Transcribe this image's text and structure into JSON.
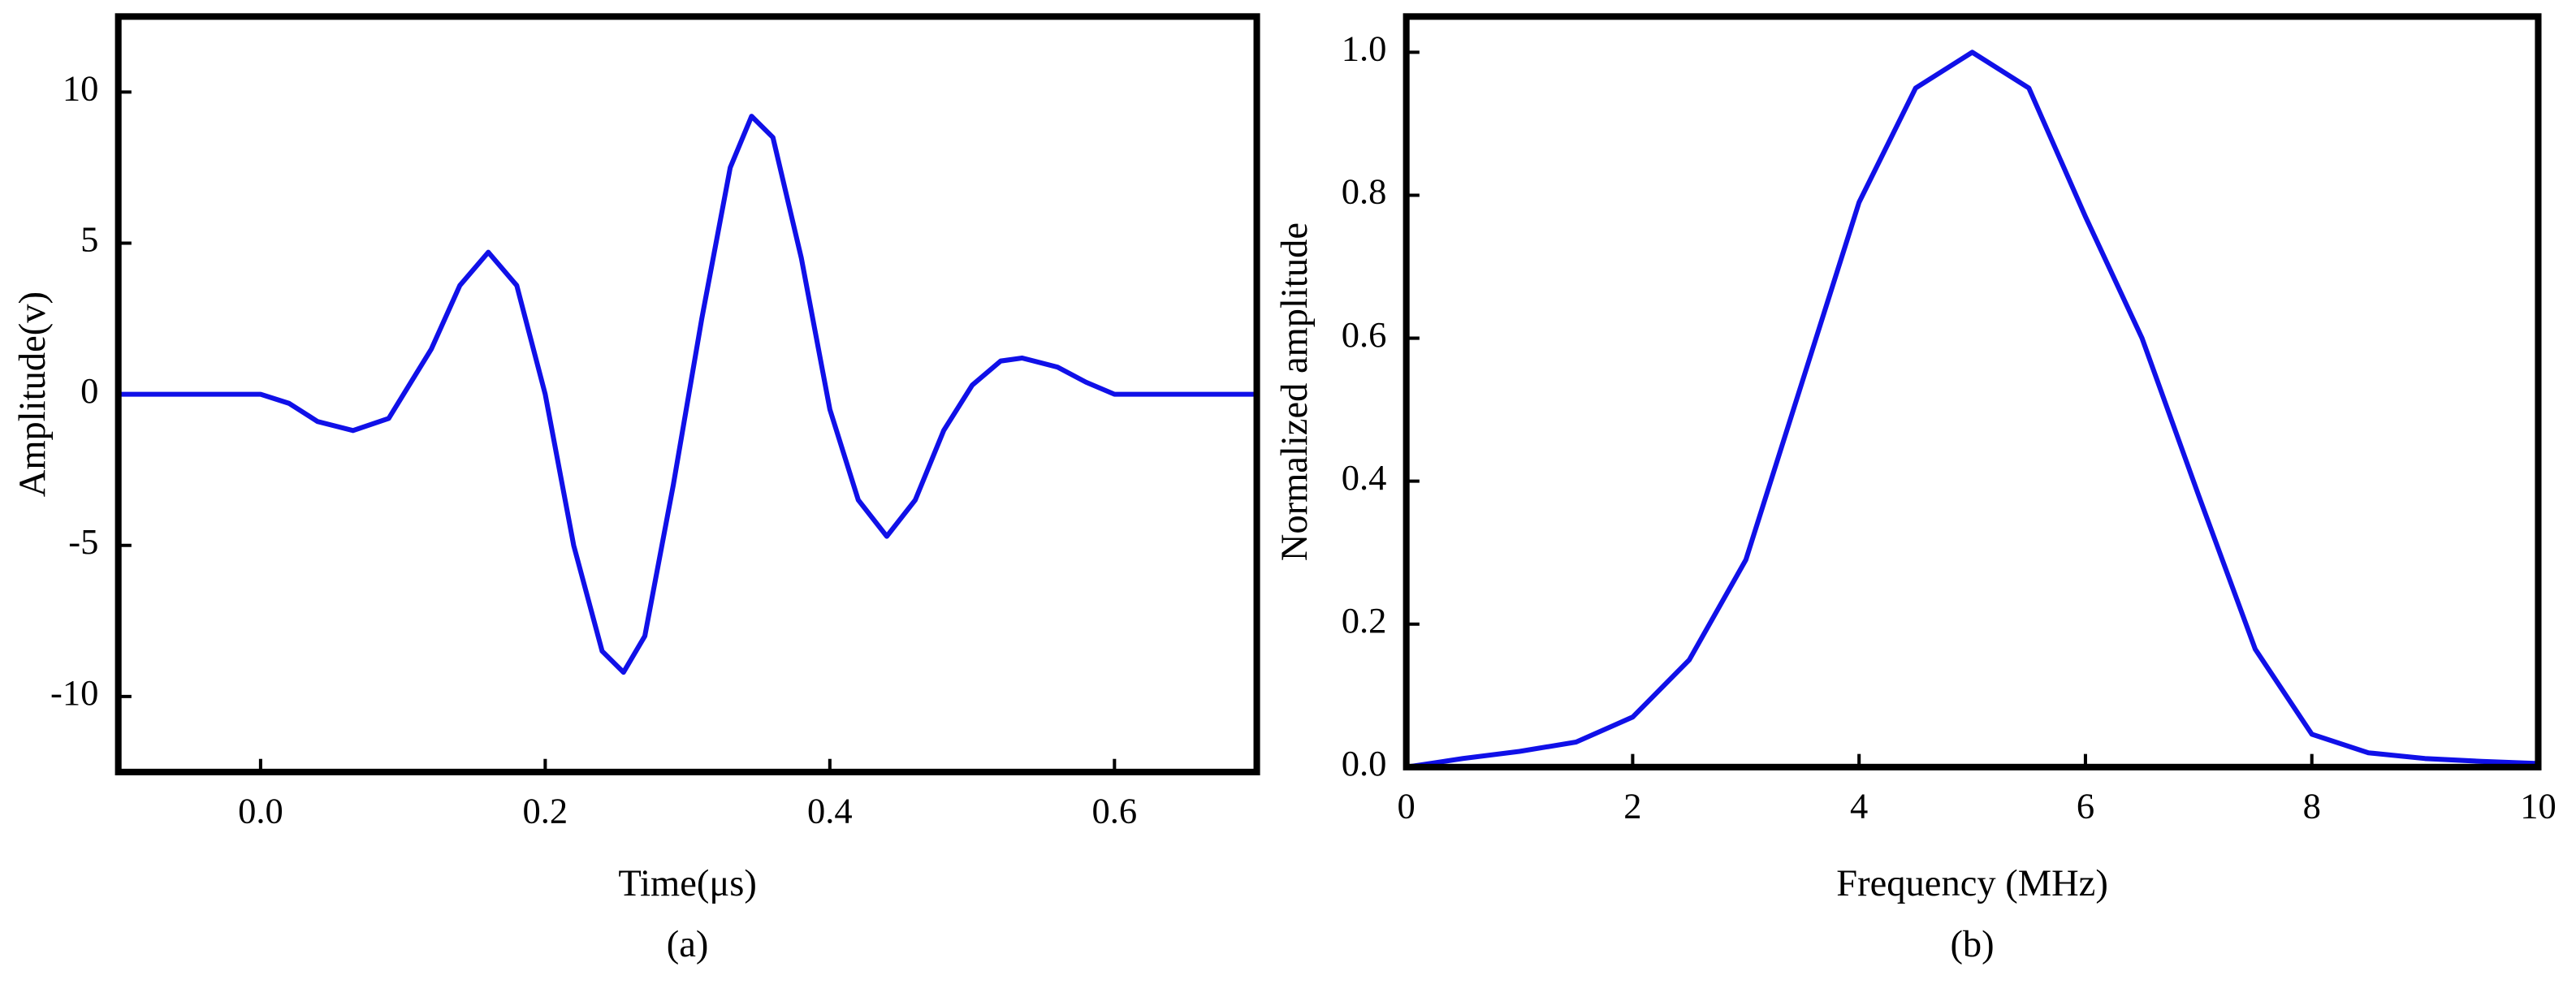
{
  "chart_data": [
    {
      "type": "line",
      "x_label": "Time(μs)",
      "y_label": "Amplitude(v)",
      "caption": "(a)",
      "x": [
        -0.1,
        0,
        0.02,
        0.04,
        0.065,
        0.09,
        0.12,
        0.14,
        0.16,
        0.18,
        0.2,
        0.22,
        0.24,
        0.255,
        0.27,
        0.29,
        0.31,
        0.33,
        0.345,
        0.36,
        0.38,
        0.4,
        0.42,
        0.44,
        0.46,
        0.48,
        0.5,
        0.52,
        0.535,
        0.56,
        0.58,
        0.6,
        0.7
      ],
      "series": [
        {
          "color": "#1010e8",
          "values": [
            0,
            0,
            -0.3,
            -0.9,
            -1.2,
            -0.8,
            1.5,
            3.6,
            4.7,
            3.6,
            0,
            -5,
            -8.5,
            -9.2,
            -8,
            -3,
            2.5,
            7.5,
            9.2,
            8.5,
            4.5,
            -0.5,
            -3.5,
            -4.7,
            -3.5,
            -1.2,
            0.3,
            1.1,
            1.2,
            0.9,
            0.4,
            0,
            0
          ]
        }
      ],
      "xlim": [
        -0.1,
        0.7
      ],
      "xticks": [
        {
          "value": 0,
          "label": "0.0"
        },
        {
          "value": 0.2,
          "label": "0.2"
        },
        {
          "value": 0.4,
          "label": "0.4"
        },
        {
          "value": 0.6,
          "label": "0.6"
        }
      ],
      "ylim": [
        -12.5,
        12.5
      ],
      "yticks": [
        -10,
        -5,
        0,
        5,
        10
      ]
    },
    {
      "type": "line",
      "x_label": "Frequency (MHz)",
      "y_label": "Normalized amplitude",
      "caption": "(b)",
      "x": [
        0,
        0.5,
        1,
        1.5,
        2,
        2.5,
        3,
        3.5,
        4,
        4.5,
        5,
        5.5,
        6,
        6.5,
        7,
        7.5,
        8,
        8.5,
        9,
        9.5,
        10
      ],
      "series": [
        {
          "color": "#1010e8",
          "values": [
            0,
            0.012,
            0.022,
            0.035,
            0.07,
            0.15,
            0.29,
            0.54,
            0.79,
            0.95,
            1.0,
            0.95,
            0.77,
            0.6,
            0.38,
            0.165,
            0.046,
            0.02,
            0.012,
            0.008,
            0.005
          ]
        }
      ],
      "xlim": [
        0,
        10
      ],
      "xticks": [
        0,
        2,
        4,
        6,
        8,
        10
      ],
      "ylim": [
        0,
        1.05
      ],
      "yticks": [
        {
          "value": 0,
          "label": "0.0"
        },
        {
          "value": 0.2,
          "label": "0.2"
        },
        {
          "value": 0.4,
          "label": "0.4"
        },
        {
          "value": 0.6,
          "label": "0.6"
        },
        {
          "value": 0.8,
          "label": "0.8"
        },
        {
          "value": 1.0,
          "label": "1.0"
        }
      ]
    }
  ]
}
